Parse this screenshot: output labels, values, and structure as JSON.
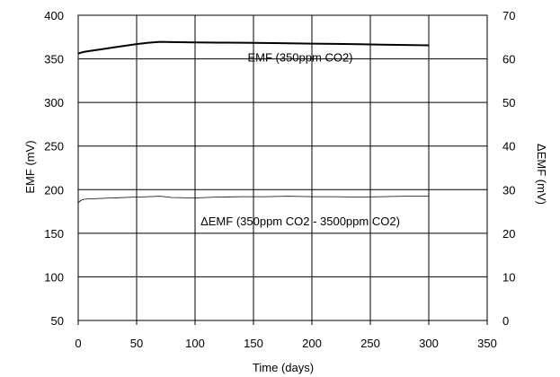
{
  "chart_data": {
    "type": "line",
    "xlabel": "Time (days)",
    "ylabel": "EMF (mV)",
    "y2label": "ΔEMF (mV)",
    "xlim": [
      0,
      350
    ],
    "ylim": [
      50,
      400
    ],
    "y2lim": [
      0,
      70
    ],
    "xticks": [
      0,
      50,
      100,
      150,
      200,
      250,
      300,
      350
    ],
    "yticks": [
      50,
      100,
      150,
      200,
      250,
      300,
      350,
      400
    ],
    "y2ticks": [
      0,
      10,
      20,
      30,
      40,
      50,
      60,
      70
    ],
    "grid": true,
    "series": [
      {
        "name": "EMF (350ppm CO2)",
        "axis": "left",
        "color": "#000000",
        "x": [
          0,
          2,
          5,
          10,
          20,
          30,
          40,
          50,
          60,
          70,
          80,
          100,
          120,
          140,
          160,
          180,
          200,
          220,
          240,
          260,
          280,
          300
        ],
        "y": [
          356,
          357,
          358,
          359,
          361,
          363,
          365,
          367,
          368.5,
          369.5,
          369.2,
          368.8,
          368.6,
          368.5,
          368.2,
          367.8,
          367.5,
          367.2,
          366.8,
          366.3,
          365.9,
          365.5
        ]
      },
      {
        "name": "ΔEMF (350ppm CO2 - 3500ppm CO2)",
        "axis": "right",
        "color": "#000000",
        "x": [
          0,
          2,
          5,
          10,
          20,
          30,
          40,
          50,
          60,
          70,
          80,
          100,
          120,
          140,
          160,
          180,
          200,
          220,
          240,
          260,
          280,
          300
        ],
        "y": [
          27.0,
          27.5,
          27.8,
          27.9,
          28.0,
          28.1,
          28.2,
          28.3,
          28.4,
          28.5,
          28.2,
          28.1,
          28.3,
          28.4,
          28.4,
          28.5,
          28.4,
          28.4,
          28.3,
          28.4,
          28.5,
          28.5
        ]
      }
    ],
    "annotations": [
      {
        "text": "EMF (350ppm CO2)",
        "x": 190,
        "y": 347,
        "axis": "left"
      },
      {
        "text": "ΔEMF (350ppm CO2 - 3500ppm CO2)",
        "x": 190,
        "y": 21.8,
        "axis": "right"
      }
    ]
  }
}
